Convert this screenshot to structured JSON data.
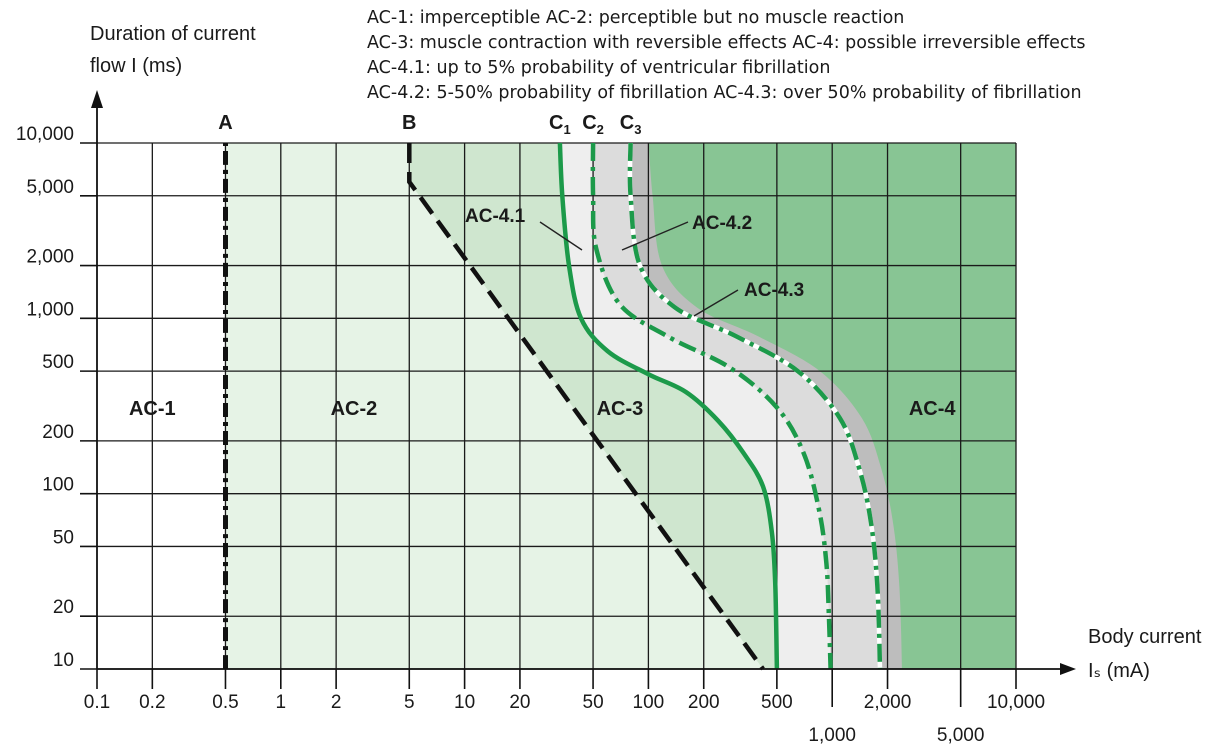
{
  "notes": [
    "AC-1: imperceptible AC-2: perceptible but no muscle reaction",
    "AC-3: muscle contraction with reversible effects AC-4: possible irreversible effects",
    "AC-4.1: up to 5% probability of ventricular fibrillation",
    "AC-4.2: 5-50% probability of fibrillation AC-4.3: over 50% probability of fibrillation"
  ],
  "y_axis_label_line1": "Duration of current",
  "y_axis_label_line2": "flow I (ms)",
  "x_axis_label_line1": "Body current",
  "x_axis_label_line2": "Iₛ (mA)",
  "colors": {
    "ac1": "#ffffff",
    "ac2": "#e6f3e6",
    "ac3": "#cfe6cf",
    "ac41": "#eeeeee",
    "ac42": "#bdbdbd",
    "ac4": "#88c594",
    "curve": "#1c9a4a",
    "grid": "#1a1a1a"
  },
  "chart_data": {
    "type": "line",
    "x_scale": "log",
    "y_scale": "log",
    "xlim": [
      0.1,
      10000
    ],
    "ylim": [
      10,
      10000
    ],
    "grid": true,
    "x_ticks": [
      {
        "value": 0.1,
        "label": "0.1",
        "row": 1
      },
      {
        "value": 0.2,
        "label": "0.2",
        "row": 1
      },
      {
        "value": 0.5,
        "label": "0.5",
        "row": 1
      },
      {
        "value": 1,
        "label": "1",
        "row": 1
      },
      {
        "value": 2,
        "label": "2",
        "row": 1
      },
      {
        "value": 5,
        "label": "5",
        "row": 1
      },
      {
        "value": 10,
        "label": "10",
        "row": 1
      },
      {
        "value": 20,
        "label": "20",
        "row": 1
      },
      {
        "value": 50,
        "label": "50",
        "row": 1
      },
      {
        "value": 100,
        "label": "100",
        "row": 1
      },
      {
        "value": 200,
        "label": "200",
        "row": 1
      },
      {
        "value": 500,
        "label": "500",
        "row": 1
      },
      {
        "value": 1000,
        "label": "1,000",
        "row": 2
      },
      {
        "value": 2000,
        "label": "2,000",
        "row": 1
      },
      {
        "value": 5000,
        "label": "5,000",
        "row": 2
      },
      {
        "value": 10000,
        "label": "10,000",
        "row": 1
      }
    ],
    "y_ticks": [
      {
        "value": 10,
        "label": "10"
      },
      {
        "value": 20,
        "label": "20"
      },
      {
        "value": 50,
        "label": "50"
      },
      {
        "value": 100,
        "label": "100"
      },
      {
        "value": 200,
        "label": "200"
      },
      {
        "value": 500,
        "label": "500"
      },
      {
        "value": 1000,
        "label": "1,000"
      },
      {
        "value": 2000,
        "label": "2,000"
      },
      {
        "value": 5000,
        "label": "5,000"
      },
      {
        "value": 10000,
        "label": "10,000"
      }
    ],
    "series": [
      {
        "name": "A",
        "style": "dash-dot-black",
        "points": [
          [
            0.5,
            10
          ],
          [
            0.5,
            10000
          ]
        ]
      },
      {
        "name": "B",
        "style": "dashed-black",
        "points": [
          [
            5,
            10000
          ],
          [
            5,
            6000
          ],
          [
            420,
            10
          ]
        ]
      },
      {
        "name": "C1",
        "style": "solid-green",
        "points": [
          [
            33,
            10000
          ],
          [
            34,
            5000
          ],
          [
            37,
            2000
          ],
          [
            43,
            1000
          ],
          [
            60,
            650
          ],
          [
            100,
            480
          ],
          [
            160,
            380
          ],
          [
            240,
            260
          ],
          [
            330,
            170
          ],
          [
            420,
            110
          ],
          [
            470,
            60
          ],
          [
            490,
            30
          ],
          [
            500,
            10
          ]
        ]
      },
      {
        "name": "C2",
        "style": "dash-dot-green",
        "points": [
          [
            50,
            10000
          ],
          [
            50,
            5000
          ],
          [
            52,
            2500
          ],
          [
            70,
            1200
          ],
          [
            130,
            780
          ],
          [
            280,
            520
          ],
          [
            500,
            310
          ],
          [
            700,
            170
          ],
          [
            850,
            80
          ],
          [
            930,
            40
          ],
          [
            960,
            20
          ],
          [
            980,
            10
          ]
        ]
      },
      {
        "name": "C3",
        "style": "dash-dot-green-white",
        "points": [
          [
            80,
            10000
          ],
          [
            80,
            5000
          ],
          [
            90,
            2000
          ],
          [
            140,
            1150
          ],
          [
            300,
            790
          ],
          [
            650,
            500
          ],
          [
            1100,
            270
          ],
          [
            1400,
            140
          ],
          [
            1620,
            70
          ],
          [
            1760,
            30
          ],
          [
            1820,
            10
          ]
        ]
      }
    ],
    "zones": [
      {
        "name": "AC-1",
        "label_at": [
          0.2,
          300
        ]
      },
      {
        "name": "AC-2",
        "label_at": [
          2.5,
          300
        ]
      },
      {
        "name": "AC-3",
        "label_at": [
          70,
          300
        ]
      },
      {
        "name": "AC-4",
        "label_at": [
          3500,
          300
        ]
      }
    ],
    "curve_labels": [
      {
        "text": "A",
        "x": 0.5,
        "y": 10000
      },
      {
        "text": "B",
        "x": 5,
        "y": 10000
      },
      {
        "text": "C",
        "sub": "1",
        "x": 33,
        "y": 10000
      },
      {
        "text": "C",
        "sub": "2",
        "x": 50,
        "y": 10000
      },
      {
        "text": "C",
        "sub": "3",
        "x": 80,
        "y": 10000
      }
    ],
    "annotations": [
      {
        "text": "AC-4.1",
        "x": 18,
        "y": 3000
      },
      {
        "text": "AC-4.2",
        "x": 250,
        "y": 2600
      },
      {
        "text": "AC-4.3",
        "x": 500,
        "y": 1300
      }
    ]
  }
}
